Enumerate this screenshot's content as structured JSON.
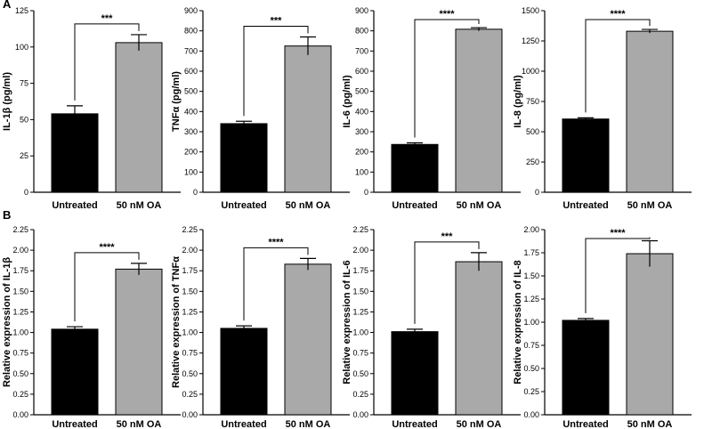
{
  "chart_data": [
    {
      "panel": "A",
      "type": "bar",
      "categories": [
        "Untreated",
        "50 nM OA"
      ],
      "values": [
        54,
        103
      ],
      "errors": [
        5.5,
        5.5
      ],
      "colors": [
        "#000000",
        "#a9a9a9"
      ],
      "ylabel": "IL-1β (pg/ml)",
      "ylim": [
        0,
        125
      ],
      "yticks": [
        "0",
        "25",
        "50",
        "75",
        "100",
        "125"
      ],
      "significance": "***"
    },
    {
      "panel": "",
      "type": "bar",
      "categories": [
        "Untreated",
        "50 nM OA"
      ],
      "values": [
        340,
        725
      ],
      "errors": [
        12,
        45
      ],
      "colors": [
        "#000000",
        "#a9a9a9"
      ],
      "ylabel": "TNFα (pg/ml)",
      "ylim": [
        0,
        900
      ],
      "yticks": [
        "0",
        "100",
        "200",
        "300",
        "400",
        "500",
        "600",
        "700",
        "800",
        "900"
      ],
      "significance": "***"
    },
    {
      "panel": "",
      "type": "bar",
      "categories": [
        "Untreated",
        "50 nM OA"
      ],
      "values": [
        237,
        808
      ],
      "errors": [
        8,
        8
      ],
      "colors": [
        "#000000",
        "#a9a9a9"
      ],
      "ylabel": "IL-6 (pg/ml)",
      "ylim": [
        0,
        900
      ],
      "yticks": [
        "0",
        "100",
        "200",
        "300",
        "400",
        "500",
        "600",
        "700",
        "800",
        "900"
      ],
      "significance": "****"
    },
    {
      "panel": "",
      "type": "bar",
      "categories": [
        "Untreated",
        "50 nM OA"
      ],
      "values": [
        605,
        1330
      ],
      "errors": [
        10,
        15
      ],
      "colors": [
        "#000000",
        "#a9a9a9"
      ],
      "ylabel": "IL-8 (pg/ml)",
      "ylim": [
        0,
        1500
      ],
      "yticks": [
        "0",
        "250",
        "500",
        "750",
        "1000",
        "1250",
        "1500"
      ],
      "significance": "****"
    },
    {
      "panel": "B",
      "type": "bar",
      "categories": [
        "Untreated",
        "50 nM OA"
      ],
      "values": [
        1.04,
        1.77
      ],
      "errors": [
        0.03,
        0.07
      ],
      "colors": [
        "#000000",
        "#a9a9a9"
      ],
      "ylabel": "Relative expression of IL-1β",
      "ylim": [
        0,
        2.25
      ],
      "yticks": [
        "0.00",
        "0.25",
        "0.50",
        "0.75",
        "1.00",
        "1.25",
        "1.50",
        "1.75",
        "2.00",
        "2.25"
      ],
      "significance": "****"
    },
    {
      "panel": "",
      "type": "bar",
      "categories": [
        "Untreated",
        "50 nM OA"
      ],
      "values": [
        1.05,
        1.83
      ],
      "errors": [
        0.03,
        0.07
      ],
      "colors": [
        "#000000",
        "#a9a9a9"
      ],
      "ylabel": "Relative expression of TNFα",
      "ylim": [
        0,
        2.25
      ],
      "yticks": [
        "0.00",
        "0.25",
        "0.50",
        "0.75",
        "1.00",
        "1.25",
        "1.50",
        "1.75",
        "2.00",
        "2.25"
      ],
      "significance": "****"
    },
    {
      "panel": "",
      "type": "bar",
      "categories": [
        "Untreated",
        "50 nM OA"
      ],
      "values": [
        1.01,
        1.86
      ],
      "errors": [
        0.03,
        0.11
      ],
      "colors": [
        "#000000",
        "#a9a9a9"
      ],
      "ylabel": "Relative expression of IL-6",
      "ylim": [
        0,
        2.25
      ],
      "yticks": [
        "0.00",
        "0.25",
        "0.50",
        "0.75",
        "1.00",
        "1.25",
        "1.50",
        "1.75",
        "2.00",
        "2.25"
      ],
      "significance": "***"
    },
    {
      "panel": "",
      "type": "bar",
      "categories": [
        "Untreated",
        "50 nM OA"
      ],
      "values": [
        1.02,
        1.74
      ],
      "errors": [
        0.02,
        0.14
      ],
      "colors": [
        "#000000",
        "#a9a9a9"
      ],
      "ylabel": "Relative expression of IL-8",
      "ylim": [
        0,
        2.0
      ],
      "yticks": [
        "0.00",
        "0.25",
        "0.50",
        "0.75",
        "1.00",
        "1.25",
        "1.50",
        "1.75",
        "2.00"
      ],
      "significance": "****"
    }
  ]
}
